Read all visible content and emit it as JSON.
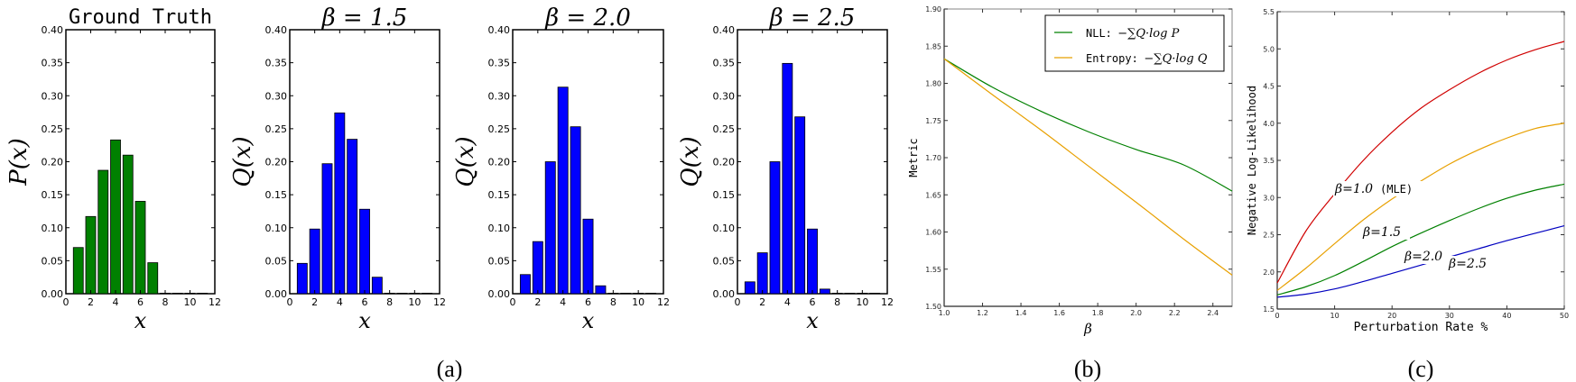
{
  "captions": {
    "a": "(a)",
    "b": "(b)",
    "c": "(c)"
  },
  "chart_data": [
    {
      "type": "bar",
      "id": "ground-truth",
      "title": "Ground Truth",
      "xlabel": "x",
      "ylabel": "P(x)",
      "color": "#008000",
      "x": [
        1,
        2,
        3,
        4,
        5,
        6,
        7,
        8,
        9,
        10,
        11
      ],
      "values": [
        0.07,
        0.117,
        0.187,
        0.233,
        0.21,
        0.14,
        0.047,
        0.0,
        0.0,
        0.0,
        0.0
      ],
      "xlim": [
        0,
        12
      ],
      "ylim": [
        0,
        0.4
      ],
      "xticks": [
        "0",
        "2",
        "4",
        "6",
        "8",
        "10",
        "12"
      ],
      "yticks": [
        "0.00",
        "0.05",
        "0.10",
        "0.15",
        "0.20",
        "0.25",
        "0.30",
        "0.35",
        "0.40"
      ]
    },
    {
      "type": "bar",
      "id": "beta-1-5",
      "title": "β = 1.5",
      "xlabel": "x",
      "ylabel": "Q(x)",
      "color": "#0000ff",
      "x": [
        1,
        2,
        3,
        4,
        5,
        6,
        7,
        8,
        9,
        10,
        11
      ],
      "values": [
        0.046,
        0.098,
        0.197,
        0.274,
        0.234,
        0.128,
        0.025,
        0.0,
        0.0,
        0.0,
        0.0
      ],
      "xlim": [
        0,
        12
      ],
      "ylim": [
        0,
        0.4
      ],
      "xticks": [
        "0",
        "2",
        "4",
        "6",
        "8",
        "10",
        "12"
      ],
      "yticks": [
        "0.00",
        "0.05",
        "0.10",
        "0.15",
        "0.20",
        "0.25",
        "0.30",
        "0.35",
        "0.40"
      ]
    },
    {
      "type": "bar",
      "id": "beta-2-0",
      "title": "β = 2.0",
      "xlabel": "x",
      "ylabel": "Q(x)",
      "color": "#0000ff",
      "x": [
        1,
        2,
        3,
        4,
        5,
        6,
        7,
        8,
        9,
        10,
        11
      ],
      "values": [
        0.029,
        0.079,
        0.2,
        0.313,
        0.253,
        0.113,
        0.012,
        0.0,
        0.0,
        0.0,
        0.0
      ],
      "xlim": [
        0,
        12
      ],
      "ylim": [
        0,
        0.4
      ],
      "xticks": [
        "0",
        "2",
        "4",
        "6",
        "8",
        "10",
        "12"
      ],
      "yticks": [
        "0.00",
        "0.05",
        "0.10",
        "0.15",
        "0.20",
        "0.25",
        "0.30",
        "0.35",
        "0.40"
      ]
    },
    {
      "type": "bar",
      "id": "beta-2-5",
      "title": "β = 2.5",
      "xlabel": "x",
      "ylabel": "Q(x)",
      "color": "#0000ff",
      "x": [
        1,
        2,
        3,
        4,
        5,
        6,
        7,
        8,
        9,
        10,
        11
      ],
      "values": [
        0.018,
        0.062,
        0.2,
        0.349,
        0.268,
        0.098,
        0.007,
        0.0,
        0.0,
        0.0,
        0.0
      ],
      "xlim": [
        0,
        12
      ],
      "ylim": [
        0,
        0.4
      ],
      "xticks": [
        "0",
        "2",
        "4",
        "6",
        "8",
        "10",
        "12"
      ],
      "yticks": [
        "0.00",
        "0.05",
        "0.10",
        "0.15",
        "0.20",
        "0.25",
        "0.30",
        "0.35",
        "0.40"
      ]
    },
    {
      "type": "line",
      "id": "metric-vs-beta",
      "title": "",
      "xlabel": "β",
      "ylabel": "Metric",
      "xlim": [
        1.0,
        2.5
      ],
      "ylim": [
        1.5,
        1.9
      ],
      "xticks": [
        "1.0",
        "1.2",
        "1.4",
        "1.6",
        "1.8",
        "2.0",
        "2.2",
        "2.4"
      ],
      "yticks": [
        "1.50",
        "1.55",
        "1.60",
        "1.65",
        "1.70",
        "1.75",
        "1.80",
        "1.85",
        "1.90"
      ],
      "legend_position": "upper right",
      "x": [
        1.0,
        1.25,
        1.5,
        1.75,
        2.0,
        2.25,
        2.5
      ],
      "series": [
        {
          "name": "NLL: −∑Q·log P",
          "color": "#008000",
          "values": [
            1.833,
            1.795,
            1.763,
            1.735,
            1.711,
            1.69,
            1.655
          ]
        },
        {
          "name": "Entropy: −∑Q·log Q",
          "color": "#e8a000",
          "values": [
            1.833,
            1.785,
            1.738,
            1.689,
            1.64,
            1.59,
            1.542
          ]
        }
      ],
      "legend": [
        {
          "prefix": "NLL:",
          "formula": "−∑Q·log P",
          "color": "#008000"
        },
        {
          "prefix": "Entropy:",
          "formula": "−∑Q·log Q",
          "color": "#e8a000"
        }
      ]
    },
    {
      "type": "line",
      "id": "nll-vs-perturbation",
      "title": "",
      "xlabel": "Perturbation Rate %",
      "ylabel": "Negative Log-Likelihood",
      "xlim": [
        0,
        50
      ],
      "ylim": [
        1.5,
        5.5
      ],
      "xticks": [
        "0",
        "10",
        "20",
        "30",
        "40",
        "50"
      ],
      "yticks": [
        "1.5",
        "2.0",
        "2.5",
        "3.0",
        "3.5",
        "4.0",
        "4.5",
        "5.0",
        "5.5"
      ],
      "x": [
        0,
        5,
        10,
        15,
        20,
        25,
        30,
        35,
        40,
        45,
        50
      ],
      "series": [
        {
          "name": "β=1.0 (MLE)",
          "color": "#d00000",
          "values": [
            1.85,
            2.55,
            3.05,
            3.5,
            3.88,
            4.2,
            4.45,
            4.67,
            4.85,
            4.99,
            5.1
          ]
        },
        {
          "name": "β=1.5",
          "color": "#e8a000",
          "values": [
            1.75,
            2.05,
            2.38,
            2.7,
            2.98,
            3.22,
            3.45,
            3.64,
            3.8,
            3.93,
            4.0
          ]
        },
        {
          "name": "β=2.0",
          "color": "#008000",
          "values": [
            1.69,
            1.8,
            1.95,
            2.14,
            2.34,
            2.52,
            2.69,
            2.85,
            2.99,
            3.1,
            3.18
          ]
        },
        {
          "name": "β=2.5",
          "color": "#0000c0",
          "values": [
            1.66,
            1.7,
            1.77,
            1.87,
            1.98,
            2.09,
            2.2,
            2.31,
            2.42,
            2.52,
            2.62
          ]
        }
      ],
      "annotations": [
        {
          "text": "β=1.0",
          "suffix": "(MLE)"
        },
        {
          "text": "β=1.5"
        },
        {
          "text": "β=2.0"
        },
        {
          "text": "β=2.5"
        }
      ]
    }
  ]
}
